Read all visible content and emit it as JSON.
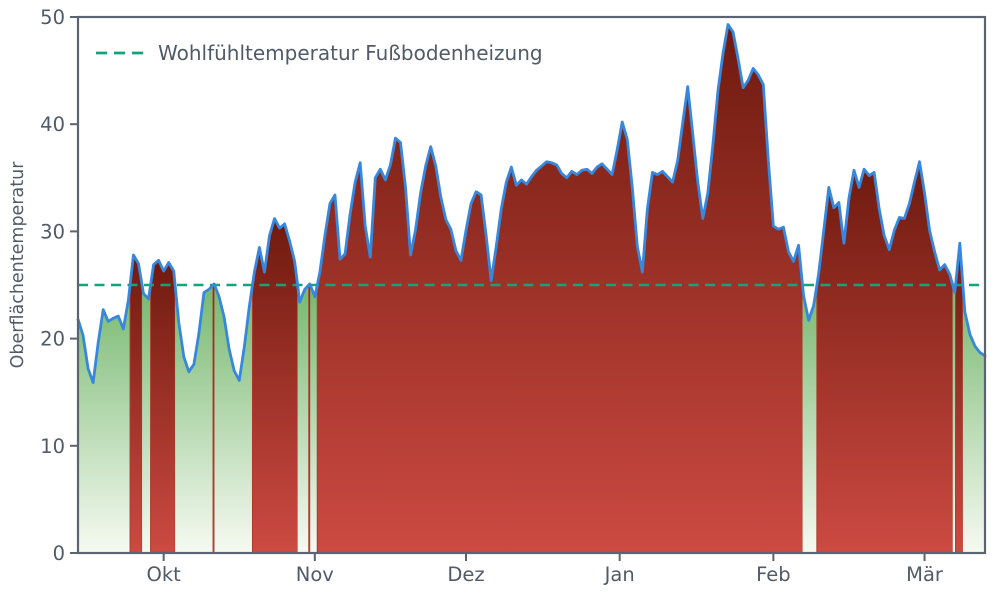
{
  "chart_data": {
    "type": "area",
    "title": "",
    "xlabel": "",
    "ylabel": "Oberflächentemperatur",
    "ylim": [
      0,
      50
    ],
    "yticks": [
      0,
      10,
      20,
      30,
      40,
      50
    ],
    "x_tick_labels": [
      "Okt",
      "Nov",
      "Dez",
      "Jan",
      "Feb",
      "Mär"
    ],
    "x_tick_days": [
      17,
      47,
      77,
      107.5,
      138,
      168
    ],
    "x_range_days": [
      0,
      180
    ],
    "grid": false,
    "legend_position": "upper-left",
    "threshold": {
      "value": 25,
      "label": "Wohlfühltemperatur Fußbodenheizung",
      "style": "dashed"
    },
    "series": [
      {
        "name": "Oberflächentemperatur",
        "unit": "°C",
        "values": [
          21.8,
          20.3,
          17.2,
          15.9,
          19.6,
          22.7,
          21.6,
          21.9,
          22.1,
          20.9,
          23.6,
          27.8,
          27.0,
          24.2,
          23.7,
          26.9,
          27.3,
          26.3,
          27.1,
          26.3,
          21.5,
          18.3,
          16.9,
          17.6,
          20.5,
          24.3,
          24.6,
          25.1,
          23.9,
          22.0,
          19.0,
          17.0,
          16.1,
          19.2,
          23.0,
          26.2,
          28.5,
          26.2,
          29.6,
          31.2,
          30.3,
          30.7,
          29.1,
          27.2,
          23.4,
          24.6,
          25.1,
          23.9,
          26.2,
          29.6,
          32.6,
          33.4,
          27.4,
          27.9,
          31.6,
          34.6,
          36.4,
          30.5,
          27.6,
          35.0,
          35.8,
          34.8,
          36.2,
          38.7,
          38.3,
          34.1,
          27.8,
          30.2,
          33.6,
          36.1,
          37.9,
          36.1,
          33.2,
          31.1,
          30.2,
          28.2,
          27.3,
          30.1,
          32.6,
          33.7,
          33.4,
          29.6,
          25.4,
          28.6,
          32.1,
          34.6,
          36.0,
          34.3,
          34.8,
          34.4,
          35.1,
          35.7,
          36.1,
          36.5,
          36.4,
          36.2,
          35.4,
          35.0,
          35.6,
          35.3,
          35.7,
          35.8,
          35.4,
          36.0,
          36.3,
          35.8,
          35.3,
          37.6,
          40.2,
          38.6,
          34.1,
          28.6,
          26.2,
          32.1,
          35.5,
          35.3,
          35.6,
          35.1,
          34.6,
          36.6,
          40.1,
          43.5,
          39.1,
          34.6,
          31.2,
          33.6,
          38.1,
          43.1,
          46.6,
          49.3,
          48.6,
          46.1,
          43.4,
          44.1,
          45.2,
          44.6,
          43.7,
          36.6,
          30.5,
          30.2,
          30.4,
          28.1,
          27.2,
          28.7,
          24.0,
          21.7,
          23.1,
          26.1,
          30.1,
          34.1,
          32.2,
          32.7,
          28.9,
          33.1,
          35.7,
          34.1,
          35.8,
          35.2,
          35.5,
          32.1,
          29.6,
          28.3,
          30.1,
          31.3,
          31.2,
          32.6,
          34.6,
          36.5,
          33.6,
          30.1,
          28.1,
          26.4,
          26.9,
          26.0,
          24.3,
          28.9,
          22.5,
          20.4,
          19.3,
          18.7,
          18.4
        ]
      }
    ],
    "colors": {
      "line": "#3787dd",
      "threshold": "#17a37a",
      "fill_above_top": "#6f1a0f",
      "fill_above_bottom": "#cc4a42",
      "fill_above_edge": "#b0392c",
      "fill_below_top": "#76b86f",
      "fill_below_bottom": "#f6faf2",
      "axis": "#5b6470",
      "text": "#515b68"
    }
  }
}
